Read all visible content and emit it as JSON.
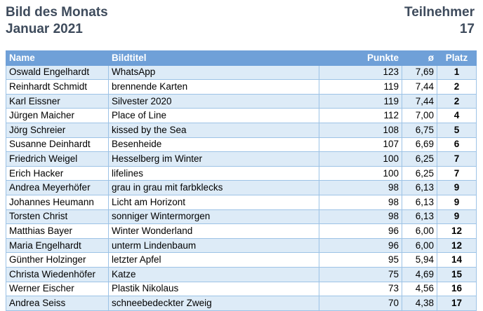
{
  "header": {
    "title": "Bild des Monats",
    "subtitle": "Januar 2021",
    "participants_label": "Teilnehmer",
    "participants_count": "17"
  },
  "table": {
    "columns": {
      "name": "Name",
      "title": "Bildtitel",
      "points": "Punkte",
      "avg": "ø",
      "rank": "Platz"
    },
    "rows": [
      {
        "name": "Oswald Engelhardt",
        "title": "WhatsApp",
        "points": "123",
        "avg": "7,69",
        "rank": "1"
      },
      {
        "name": "Reinhardt Schmidt",
        "title": "brennende Karten",
        "points": "119",
        "avg": "7,44",
        "rank": "2"
      },
      {
        "name": "Karl Eissner",
        "title": "Silvester 2020",
        "points": "119",
        "avg": "7,44",
        "rank": "2"
      },
      {
        "name": "Jürgen Maicher",
        "title": "Place of Line",
        "points": "112",
        "avg": "7,00",
        "rank": "4"
      },
      {
        "name": "Jörg Schreier",
        "title": "kissed by the Sea",
        "points": "108",
        "avg": "6,75",
        "rank": "5"
      },
      {
        "name": "Susanne Deinhardt",
        "title": "Besenheide",
        "points": "107",
        "avg": "6,69",
        "rank": "6"
      },
      {
        "name": "Friedrich Weigel",
        "title": "Hesselberg im Winter",
        "points": "100",
        "avg": "6,25",
        "rank": "7"
      },
      {
        "name": "Erich Hacker",
        "title": "lifelines",
        "points": "100",
        "avg": "6,25",
        "rank": "7"
      },
      {
        "name": "Andrea Meyerhöfer",
        "title": "grau in grau mit farbklecks",
        "points": "98",
        "avg": "6,13",
        "rank": "9"
      },
      {
        "name": "Johannes Heumann",
        "title": "Licht am Horizont",
        "points": "98",
        "avg": "6,13",
        "rank": "9"
      },
      {
        "name": "Torsten Christ",
        "title": "sonniger Wintermorgen",
        "points": "98",
        "avg": "6,13",
        "rank": "9"
      },
      {
        "name": "Matthias Bayer",
        "title": "Winter Wonderland",
        "points": "96",
        "avg": "6,00",
        "rank": "12"
      },
      {
        "name": "Maria Engelhardt",
        "title": "unterm Lindenbaum",
        "points": "96",
        "avg": "6,00",
        "rank": "12"
      },
      {
        "name": "Günther Holzinger",
        "title": "letzter Apfel",
        "points": "95",
        "avg": "5,94",
        "rank": "14"
      },
      {
        "name": "Christa Wiedenhöfer",
        "title": "Katze",
        "points": "75",
        "avg": "4,69",
        "rank": "15"
      },
      {
        "name": "Werner Eischer",
        "title": "Plastik Nikolaus",
        "points": "73",
        "avg": "4,56",
        "rank": "16"
      },
      {
        "name": "Andrea Seiss",
        "title": "schneebedeckter Zweig",
        "points": "70",
        "avg": "4,38",
        "rank": "17"
      }
    ]
  }
}
